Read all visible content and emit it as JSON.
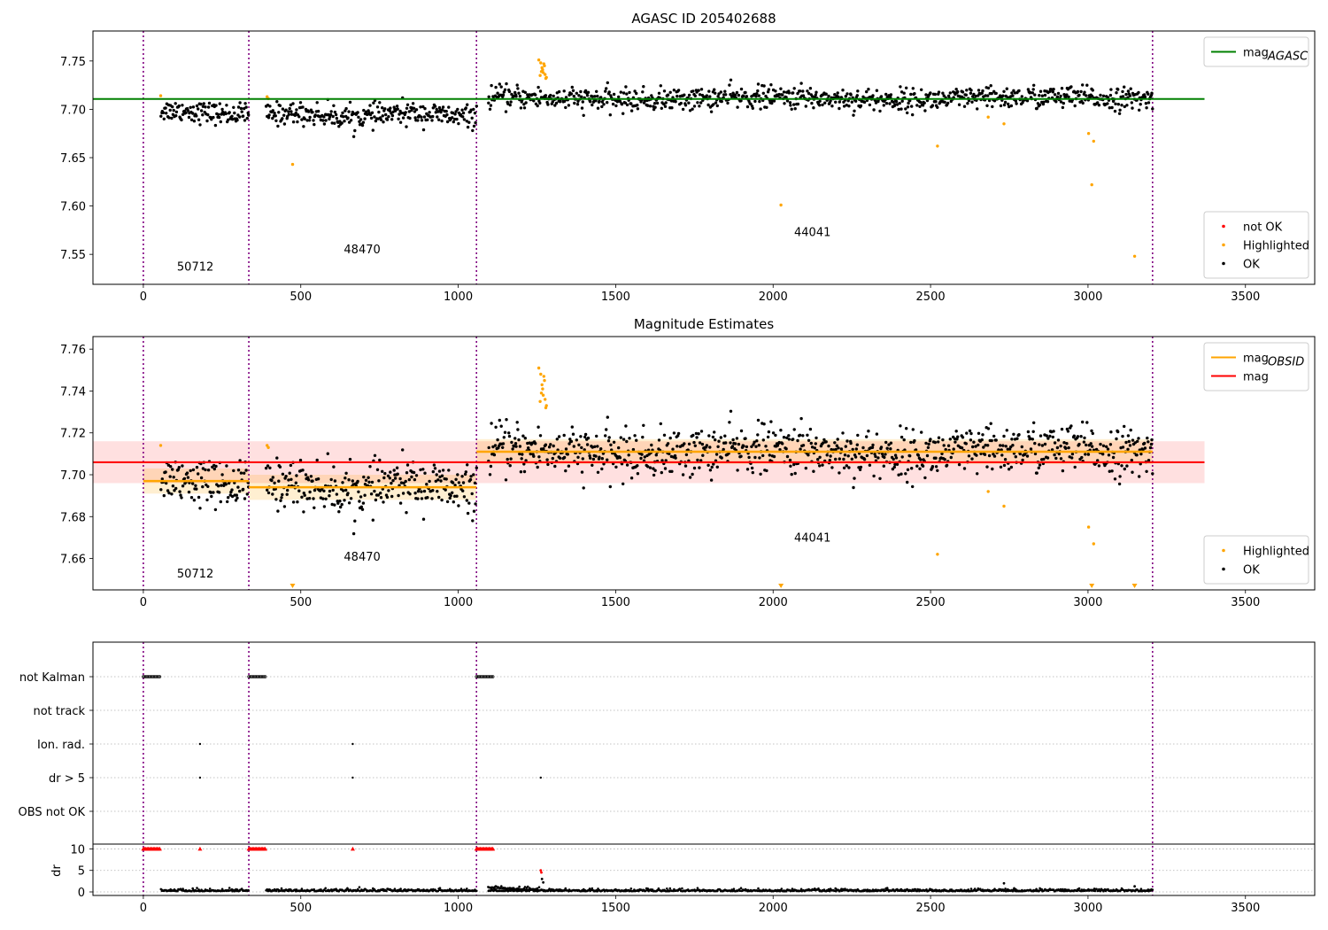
{
  "chart_data": [
    {
      "type": "scatter",
      "title": "AGASC ID 205402688",
      "xlim": [
        -160,
        3720
      ],
      "ylim": [
        7.519,
        7.781
      ],
      "xticks": [
        0,
        500,
        1000,
        1500,
        2000,
        2500,
        3000,
        3500
      ],
      "yticks": [
        7.55,
        7.6,
        7.65,
        7.7,
        7.75
      ],
      "ytick_labels": [
        "7.55",
        "7.60",
        "7.65",
        "7.70",
        "7.75"
      ],
      "obsid_boundaries": [
        0,
        335,
        1058,
        3205
      ],
      "obsid_labels": [
        {
          "text": "50712",
          "x": 165,
          "y": 7.533
        },
        {
          "text": "48470",
          "x": 695,
          "y": 7.551
        },
        {
          "text": "44041",
          "x": 2125,
          "y": 7.569
        }
      ],
      "segments": [
        {
          "x0": 55,
          "x1": 335,
          "mean": 7.697,
          "sd": 0.0055
        },
        {
          "x0": 390,
          "x1": 1058,
          "mean": 7.694,
          "sd": 0.0058
        },
        {
          "x0": 1095,
          "x1": 3205,
          "mean": 7.711,
          "sd": 0.0058
        }
      ],
      "lines": [
        {
          "name": "mag_AGASC",
          "color": "#008000",
          "y": 7.7107,
          "x0": -160,
          "x1": 3370
        }
      ],
      "highlighted_points": [
        [
          55,
          7.714
        ],
        [
          393,
          7.713
        ],
        [
          397,
          7.711
        ],
        [
          474,
          7.643
        ],
        [
          2025,
          7.601
        ],
        [
          2522,
          7.662
        ],
        [
          2683,
          7.692
        ],
        [
          2733,
          7.685
        ],
        [
          3002,
          7.675
        ],
        [
          3012,
          7.622
        ],
        [
          3018,
          7.667
        ],
        [
          3148,
          7.548
        ],
        [
          1256,
          7.751
        ],
        [
          1262,
          7.748
        ],
        [
          1266,
          7.743
        ],
        [
          1270,
          7.738
        ],
        [
          1274,
          7.745
        ],
        [
          1260,
          7.735
        ],
        [
          1268,
          7.741
        ],
        [
          1276,
          7.736
        ],
        [
          1280,
          7.733
        ],
        [
          1272,
          7.747
        ],
        [
          1278,
          7.732
        ],
        [
          1264,
          7.739
        ]
      ],
      "legends": [
        {
          "position": "upper-right",
          "entries": [
            {
              "label": "mag",
              "sub": "AGASC",
              "color": "#008000",
              "kind": "line"
            }
          ]
        },
        {
          "position": "lower-right",
          "entries": [
            {
              "label": "not OK",
              "color": "#ff0000",
              "kind": "point"
            },
            {
              "label": "Highlighted",
              "color": "#ffa500",
              "kind": "point"
            },
            {
              "label": "OK",
              "color": "#000000",
              "kind": "point"
            }
          ]
        }
      ]
    },
    {
      "type": "scatter",
      "title": "Magnitude Estimates",
      "xlim": [
        -160,
        3720
      ],
      "ylim": [
        7.645,
        7.766
      ],
      "xticks": [
        0,
        500,
        1000,
        1500,
        2000,
        2500,
        3000,
        3500
      ],
      "yticks": [
        7.66,
        7.68,
        7.7,
        7.72,
        7.74,
        7.76
      ],
      "ytick_labels": [
        "7.66",
        "7.68",
        "7.70",
        "7.72",
        "7.74",
        "7.76"
      ],
      "obsid_boundaries": [
        0,
        335,
        1058,
        3205
      ],
      "obsid_labels": [
        {
          "text": "50712",
          "x": 165,
          "y": 7.651
        },
        {
          "text": "48470",
          "x": 695,
          "y": 7.659
        },
        {
          "text": "44041",
          "x": 2125,
          "y": 7.668
        }
      ],
      "mag": {
        "y": 7.706,
        "band": [
          7.696,
          7.716
        ],
        "x0": -160,
        "x1": 3370,
        "color": "#ff0000"
      },
      "mag_obsid": [
        {
          "x0": 0,
          "x1": 335,
          "y": 7.697,
          "band": [
            7.691,
            7.703
          ]
        },
        {
          "x0": 335,
          "x1": 1058,
          "y": 7.694,
          "band": [
            7.688,
            7.7
          ]
        },
        {
          "x0": 1058,
          "x1": 3205,
          "y": 7.711,
          "band": [
            7.705,
            7.717
          ]
        }
      ],
      "highlighted_points": [
        [
          55,
          7.714
        ],
        [
          393,
          7.714
        ],
        [
          397,
          7.713
        ],
        [
          2522,
          7.662
        ],
        [
          2683,
          7.692
        ],
        [
          2733,
          7.685
        ],
        [
          3002,
          7.675
        ],
        [
          3018,
          7.667
        ],
        [
          1256,
          7.751
        ],
        [
          1262,
          7.748
        ],
        [
          1266,
          7.743
        ],
        [
          1270,
          7.738
        ],
        [
          1274,
          7.745
        ],
        [
          1260,
          7.735
        ],
        [
          1268,
          7.741
        ],
        [
          1276,
          7.736
        ],
        [
          1280,
          7.733
        ],
        [
          1272,
          7.747
        ],
        [
          1278,
          7.732
        ],
        [
          1264,
          7.739
        ]
      ],
      "offscale_markers": [
        474,
        2025,
        3012,
        3148
      ],
      "legends": [
        {
          "position": "upper-right",
          "entries": [
            {
              "label": "mag",
              "sub": "OBSID",
              "color": "#ffa500",
              "kind": "line"
            },
            {
              "label": "mag",
              "sub": "",
              "color": "#ff0000",
              "kind": "line"
            }
          ]
        },
        {
          "position": "lower-right",
          "entries": [
            {
              "label": "Highlighted",
              "color": "#ffa500",
              "kind": "point"
            },
            {
              "label": "OK",
              "color": "#000000",
              "kind": "point"
            }
          ]
        }
      ]
    },
    {
      "type": "scatter",
      "title": "",
      "xlim": [
        -160,
        3720
      ],
      "flag_rows": [
        "not Kalman",
        "not track",
        "Ion. rad.",
        "dr > 5",
        "OBS not OK"
      ],
      "flag_points": {
        "not Kalman": [
          [
            0,
            55
          ],
          [
            335,
            390
          ],
          [
            1058,
            1110
          ]
        ],
        "not track": [],
        "Ion. rad.": [
          [
            180
          ],
          [
            665
          ]
        ],
        "dr > 5": [
          [
            180
          ],
          [
            665
          ],
          [
            1262
          ]
        ],
        "OBS not OK": []
      },
      "dr_ylabel": "dr",
      "dr_yticks": [
        0,
        5,
        10
      ],
      "dr_ytick_labels": [
        "0",
        "5",
        "10"
      ],
      "dr_clip": 10,
      "dr_red_ranges": [
        [
          0,
          55
        ],
        [
          335,
          390
        ],
        [
          1058,
          1110
        ]
      ],
      "dr_red_single": [
        180,
        665
      ],
      "dr_spike": [
        [
          1262,
          5.0
        ],
        [
          1264,
          4.5
        ],
        [
          1266,
          3.0
        ],
        [
          1270,
          2.2
        ],
        [
          2733,
          2.0
        ],
        [
          3148,
          1.3
        ]
      ],
      "xticks": [
        0,
        500,
        1000,
        1500,
        2000,
        2500,
        3000,
        3500
      ]
    }
  ]
}
